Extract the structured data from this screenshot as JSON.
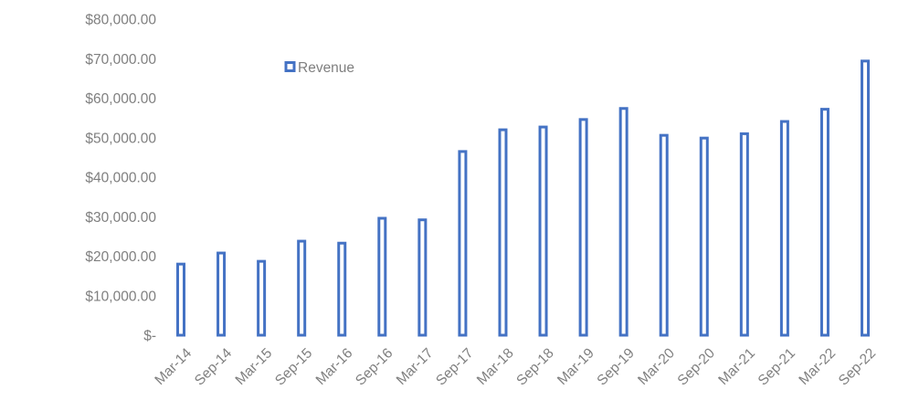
{
  "chart_data": {
    "type": "bar",
    "categories": [
      "Mar-14",
      "Sep-14",
      "Mar-15",
      "Sep-15",
      "Mar-16",
      "Sep-16",
      "Mar-17",
      "Sep-17",
      "Mar-18",
      "Sep-18",
      "Mar-19",
      "Sep-19",
      "Mar-20",
      "Sep-20",
      "Mar-21",
      "Sep-21",
      "Mar-22",
      "Sep-22"
    ],
    "series": [
      {
        "name": "Revenue",
        "values": [
          18000,
          20800,
          18700,
          23800,
          23300,
          29600,
          29200,
          46500,
          52000,
          52700,
          54600,
          57400,
          50600,
          49900,
          51000,
          54100,
          57200,
          69400
        ]
      }
    ],
    "y_ticks": [
      "$-",
      "$10,000.00",
      "$20,000.00",
      "$30,000.00",
      "$40,000.00",
      "$50,000.00",
      "$60,000.00",
      "$70,000.00",
      "$80,000.00"
    ],
    "ylim": [
      0,
      80000
    ],
    "title": "",
    "xlabel": "",
    "ylabel": "",
    "legend_position": "top-left",
    "grid": false,
    "colors": {
      "bar_stroke": "#4472c4",
      "bar_fill": "#ffffff",
      "text": "#7f7f7f"
    }
  }
}
